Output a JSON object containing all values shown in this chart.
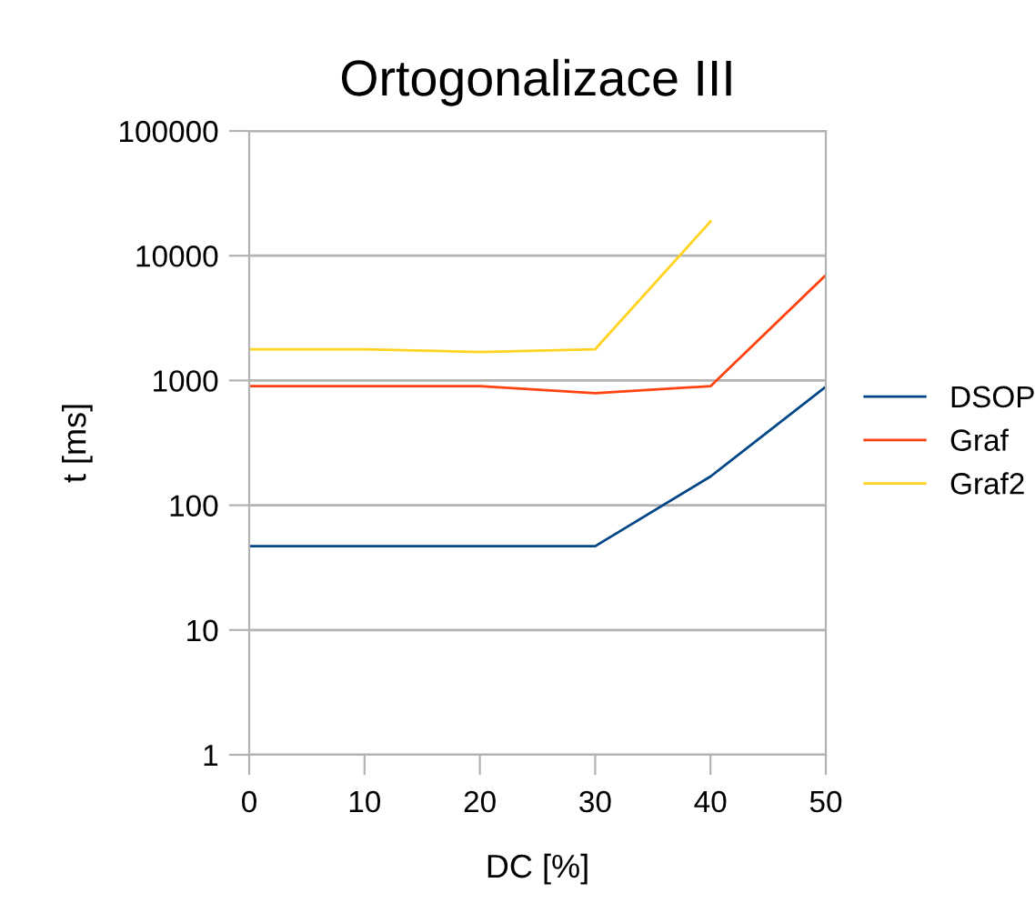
{
  "chart_data": {
    "type": "line",
    "title": "Ortogonalizace III",
    "xlabel": "DC [%]",
    "ylabel": "t [ms]",
    "x": [
      0,
      10,
      20,
      30,
      40,
      50
    ],
    "series": [
      {
        "name": "DSOP",
        "color": "#004586",
        "values": [
          47,
          47,
          47,
          47,
          170,
          890
        ]
      },
      {
        "name": "Graf",
        "color": "#ff420e",
        "values": [
          900,
          900,
          900,
          790,
          900,
          7000
        ]
      },
      {
        "name": "Graf2",
        "color": "#ffd320",
        "values": [
          1780,
          1780,
          1690,
          1780,
          18800,
          null
        ]
      }
    ],
    "log": "y",
    "xlim": [
      0,
      50
    ],
    "xticks": [
      0,
      10,
      20,
      30,
      40,
      50
    ],
    "ylim": [
      1,
      100000
    ],
    "yticks": [
      1,
      10,
      100,
      1000,
      10000,
      100000
    ],
    "grid": "y",
    "legend": "right",
    "marker": "none",
    "line_style": "solid"
  }
}
